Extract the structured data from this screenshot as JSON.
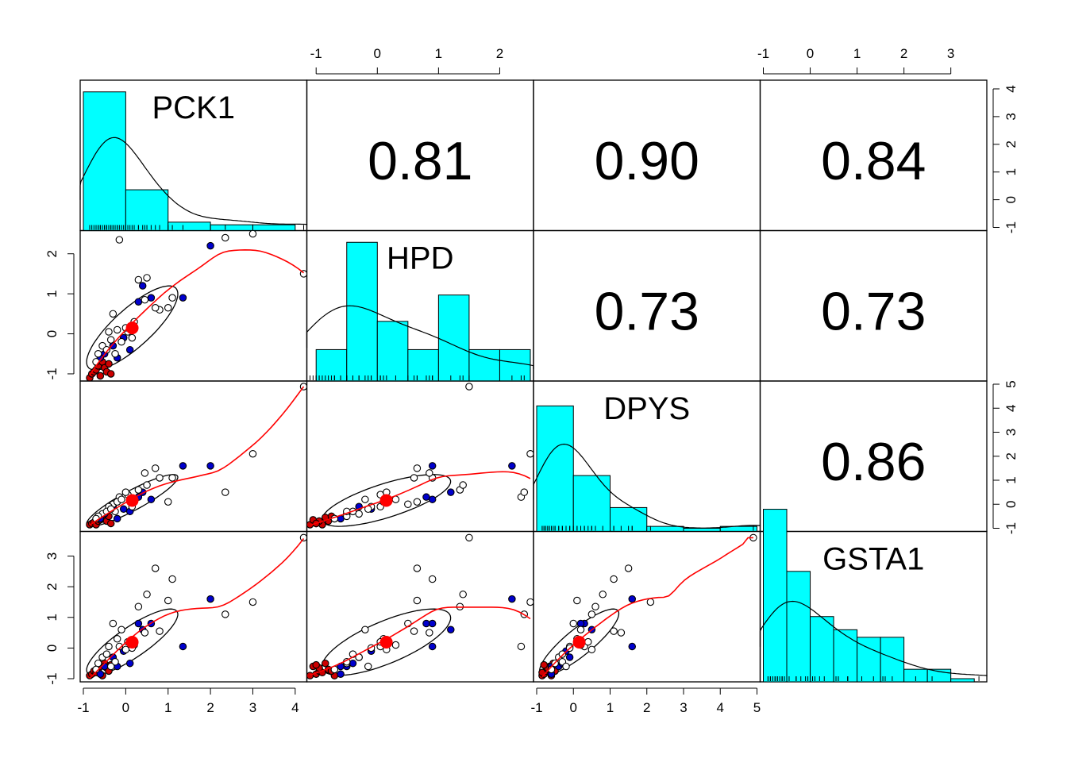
{
  "variables": [
    "PCK1",
    "HPD",
    "DPYS",
    "GSTA1"
  ],
  "correlations": {
    "PCK1_HPD": "0.81",
    "PCK1_DPYS": "0.90",
    "PCK1_GSTA1": "0.84",
    "HPD_DPYS": "0.73",
    "HPD_GSTA1": "0.73",
    "DPYS_GSTA1": "0.86"
  },
  "colors": {
    "hist_fill": "#00FFFF",
    "group_a": "#0000CD",
    "group_b": "#CD0000",
    "smoother": "#FF0000",
    "center": "#FF0000"
  },
  "chart_data": {
    "type": "scatter",
    "subtype": "pairs-panels scatterplot matrix",
    "grid": false,
    "axes": {
      "PCK1": {
        "range": [
          -1,
          4.2
        ],
        "ticks": [
          "-1",
          "0",
          "1",
          "2",
          "3",
          "4"
        ]
      },
      "HPD": {
        "range": [
          -1.1,
          2.5
        ],
        "ticks": [
          "-1",
          "0",
          "1",
          "2"
        ]
      },
      "DPYS": {
        "range": [
          -1,
          5
        ],
        "ticks": [
          "-1",
          "0",
          "1",
          "2",
          "3",
          "4",
          "5"
        ]
      },
      "GSTA1": {
        "range": [
          -1,
          3.7
        ],
        "ticks": [
          "-1",
          "0",
          "1",
          "2",
          "3"
        ]
      }
    },
    "histograms": {
      "PCK1": {
        "breaks": [
          -1,
          0,
          1,
          2,
          3,
          4
        ],
        "density": [
          0.72,
          0.2,
          0.028,
          0.014,
          0.014
        ]
      },
      "HPD": {
        "breaks": [
          -1,
          -0.5,
          0,
          0.5,
          1,
          1.5,
          2,
          2.5
        ],
        "density": [
          0.15,
          0.72,
          0.3,
          0.15,
          0.44,
          0.15,
          0.15
        ]
      },
      "DPYS": {
        "breaks": [
          -1,
          0,
          1,
          2,
          3,
          4,
          5
        ],
        "density": [
          0.65,
          0.28,
          0.11,
          0.01,
          0.0,
          0.01
        ]
      },
      "GSTA1": {
        "breaks": [
          -1,
          -0.5,
          0,
          0.5,
          1,
          1.5,
          2,
          2.5,
          3,
          3.5
        ],
        "density": [
          0.9,
          0.57,
          0.33,
          0.26,
          0.22,
          0.22,
          0.05,
          0.05,
          0.0
        ]
      }
    },
    "points": [
      {
        "PCK1": -0.85,
        "HPD": -1.1,
        "DPYS": -0.85,
        "GSTA1": -0.9,
        "group": "b"
      },
      {
        "PCK1": -0.8,
        "HPD": -1.0,
        "DPYS": -0.8,
        "GSTA1": -0.85,
        "group": "b"
      },
      {
        "PCK1": -0.75,
        "HPD": -0.95,
        "DPYS": -0.75,
        "GSTA1": -0.75,
        "group": "b"
      },
      {
        "PCK1": -0.7,
        "HPD": -0.9,
        "DPYS": -0.85,
        "GSTA1": -0.8,
        "group": "b"
      },
      {
        "PCK1": -0.65,
        "HPD": -0.8,
        "DPYS": -0.7,
        "GSTA1": -0.7,
        "group": "b"
      },
      {
        "PCK1": -0.6,
        "HPD": -1.05,
        "DPYS": -0.65,
        "GSTA1": -0.6,
        "group": "b"
      },
      {
        "PCK1": -0.55,
        "HPD": -0.7,
        "DPYS": -0.6,
        "GSTA1": -0.9,
        "group": "b"
      },
      {
        "PCK1": -0.5,
        "HPD": -0.85,
        "DPYS": -0.55,
        "GSTA1": -0.5,
        "group": "b"
      },
      {
        "PCK1": -0.45,
        "HPD": -0.95,
        "DPYS": -0.7,
        "GSTA1": -0.65,
        "group": "b"
      },
      {
        "PCK1": -0.4,
        "HPD": -0.75,
        "DPYS": -0.5,
        "GSTA1": -0.75,
        "group": "b"
      },
      {
        "PCK1": -0.35,
        "HPD": -1.0,
        "DPYS": -0.8,
        "GSTA1": -0.55,
        "group": "b"
      },
      {
        "PCK1": -0.5,
        "HPD": -0.5,
        "DPYS": -0.4,
        "GSTA1": -0.6,
        "group": "a"
      },
      {
        "PCK1": -0.6,
        "HPD": -0.6,
        "DPYS": -0.6,
        "GSTA1": -0.85,
        "group": "a"
      },
      {
        "PCK1": -0.3,
        "HPD": -0.3,
        "DPYS": -0.1,
        "GSTA1": -0.3,
        "group": "a"
      },
      {
        "PCK1": -0.2,
        "HPD": -0.6,
        "DPYS": -0.6,
        "GSTA1": -0.6,
        "group": "a"
      },
      {
        "PCK1": 0.1,
        "HPD": -0.4,
        "DPYS": -0.3,
        "GSTA1": -0.5,
        "group": "a"
      },
      {
        "PCK1": 0.3,
        "HPD": 0.8,
        "DPYS": 0.3,
        "GSTA1": 0.8,
        "group": "a"
      },
      {
        "PCK1": 0.4,
        "HPD": 1.2,
        "DPYS": 0.5,
        "GSTA1": 0.6,
        "group": "a"
      },
      {
        "PCK1": 0.6,
        "HPD": 0.9,
        "DPYS": 0.2,
        "GSTA1": 0.8,
        "group": "a"
      },
      {
        "PCK1": 1.35,
        "HPD": 0.9,
        "DPYS": 1.6,
        "GSTA1": 0.05,
        "group": "a"
      },
      {
        "PCK1": 2.0,
        "HPD": 2.2,
        "DPYS": 1.6,
        "GSTA1": 1.6,
        "group": "a"
      },
      {
        "PCK1": -0.05,
        "HPD": -0.1,
        "DPYS": -0.2,
        "GSTA1": -0.1,
        "group": "a"
      },
      {
        "PCK1": -0.15,
        "HPD": 2.35,
        "DPYS": 0.3,
        "GSTA1": 0.05,
        "group": "o"
      },
      {
        "PCK1": 0.3,
        "HPD": 1.35,
        "DPYS": 0.6,
        "GSTA1": 1.35,
        "group": "o"
      },
      {
        "PCK1": 0.5,
        "HPD": 1.4,
        "DPYS": 0.8,
        "GSTA1": 1.75,
        "group": "o"
      },
      {
        "PCK1": 0.8,
        "HPD": 0.6,
        "DPYS": 1.1,
        "GSTA1": 0.55,
        "group": "o"
      },
      {
        "PCK1": 0.7,
        "HPD": 0.65,
        "DPYS": 1.5,
        "GSTA1": 2.6,
        "group": "o"
      },
      {
        "PCK1": 1.0,
        "HPD": 0.65,
        "DPYS": 0.1,
        "GSTA1": 1.55,
        "group": "o"
      },
      {
        "PCK1": 1.1,
        "HPD": 0.9,
        "DPYS": 1.1,
        "GSTA1": 2.25,
        "group": "o"
      },
      {
        "PCK1": 2.35,
        "HPD": 2.4,
        "DPYS": 0.5,
        "GSTA1": 1.1,
        "group": "o"
      },
      {
        "PCK1": 3.0,
        "HPD": 2.5,
        "DPYS": 2.1,
        "GSTA1": 1.5,
        "group": "o"
      },
      {
        "PCK1": 4.2,
        "HPD": 1.5,
        "DPYS": 4.9,
        "GSTA1": 3.6,
        "group": "o"
      },
      {
        "PCK1": -0.3,
        "HPD": 0.5,
        "DPYS": 0.0,
        "GSTA1": 0.8,
        "group": "o"
      },
      {
        "PCK1": -0.4,
        "HPD": 0.05,
        "DPYS": -0.1,
        "GSTA1": 0.05,
        "group": "o"
      },
      {
        "PCK1": -0.2,
        "HPD": 0.1,
        "DPYS": 0.1,
        "GSTA1": 0.3,
        "group": "o"
      },
      {
        "PCK1": -0.1,
        "HPD": -0.2,
        "DPYS": 0.2,
        "GSTA1": 0.6,
        "group": "o"
      },
      {
        "PCK1": 0.05,
        "HPD": 0.05,
        "DPYS": 0.4,
        "GSTA1": 0.2,
        "group": "o"
      },
      {
        "PCK1": 0.2,
        "HPD": 0.3,
        "DPYS": 0.2,
        "GSTA1": 0.1,
        "group": "o"
      },
      {
        "PCK1": -0.55,
        "HPD": -0.3,
        "DPYS": -0.4,
        "GSTA1": -0.3,
        "group": "o"
      },
      {
        "PCK1": -0.65,
        "HPD": -0.5,
        "DPYS": -0.5,
        "GSTA1": -0.5,
        "group": "o"
      },
      {
        "PCK1": -0.45,
        "HPD": -0.4,
        "DPYS": -0.3,
        "GSTA1": -0.2,
        "group": "o"
      },
      {
        "PCK1": -0.25,
        "HPD": -0.5,
        "DPYS": -0.3,
        "GSTA1": -0.45,
        "group": "o"
      },
      {
        "PCK1": 0.15,
        "HPD": -0.1,
        "DPYS": -0.1,
        "GSTA1": 0.0,
        "group": "o"
      },
      {
        "PCK1": -0.7,
        "HPD": -0.7,
        "DPYS": -0.6,
        "GSTA1": -0.7,
        "group": "o"
      },
      {
        "PCK1": -0.35,
        "HPD": -0.15,
        "DPYS": -0.2,
        "GSTA1": -0.6,
        "group": "o"
      },
      {
        "PCK1": 0.45,
        "HPD": 0.85,
        "DPYS": 1.3,
        "GSTA1": 0.5,
        "group": "o"
      },
      {
        "PCK1": 0.0,
        "HPD": 0.15,
        "DPYS": 0.5,
        "GSTA1": -0.05,
        "group": "o"
      }
    ]
  }
}
